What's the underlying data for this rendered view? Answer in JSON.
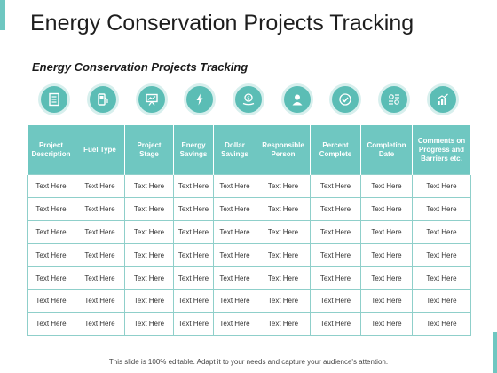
{
  "slide": {
    "title": "Energy Conservation Projects Tracking",
    "subtitle": "Energy Conservation Projects  Tracking",
    "footer": "This slide is 100% editable. Adapt it to your needs and capture your audience's attention."
  },
  "icons": [
    {
      "name": "document-icon"
    },
    {
      "name": "fuel-pump-icon"
    },
    {
      "name": "presentation-board-icon"
    },
    {
      "name": "energy-savings-icon"
    },
    {
      "name": "dollar-hand-icon"
    },
    {
      "name": "person-icon"
    },
    {
      "name": "checkmark-icon"
    },
    {
      "name": "calendar-settings-icon"
    },
    {
      "name": "growth-chart-icon"
    }
  ],
  "table": {
    "headers": [
      "Project Description",
      "Fuel Type",
      "Project Stage",
      "Energy Savings",
      "Dollar Savings",
      "Responsible Person",
      "Percent Complete",
      "Completion Date",
      "Comments on Progress and Barriers etc."
    ],
    "rows": [
      [
        "Text Here",
        "Text Here",
        "Text Here",
        "Text Here",
        "Text Here",
        "Text Here",
        "Text Here",
        "Text Here",
        "Text Here"
      ],
      [
        "Text Here",
        "Text Here",
        "Text Here",
        "Text Here",
        "Text Here",
        "Text Here",
        "Text Here",
        "Text Here",
        "Text Here"
      ],
      [
        "Text Here",
        "Text Here",
        "Text Here",
        "Text Here",
        "Text Here",
        "Text Here",
        "Text Here",
        "Text Here",
        "Text Here"
      ],
      [
        "Text Here",
        "Text Here",
        "Text Here",
        "Text Here",
        "Text Here",
        "Text Here",
        "Text Here",
        "Text Here",
        "Text Here"
      ],
      [
        "Text Here",
        "Text Here",
        "Text Here",
        "Text Here",
        "Text Here",
        "Text Here",
        "Text Here",
        "Text Here",
        "Text Here"
      ],
      [
        "Text Here",
        "Text Here",
        "Text Here",
        "Text Here",
        "Text Here",
        "Text Here",
        "Text Here",
        "Text Here",
        "Text Here"
      ],
      [
        "Text Here",
        "Text Here",
        "Text Here",
        "Text Here",
        "Text Here",
        "Text Here",
        "Text Here",
        "Text Here",
        "Text Here"
      ]
    ]
  },
  "colors": {
    "accent": "#6fc7c1",
    "icon_fill": "#5bbdb5",
    "border": "#8fcfca"
  }
}
